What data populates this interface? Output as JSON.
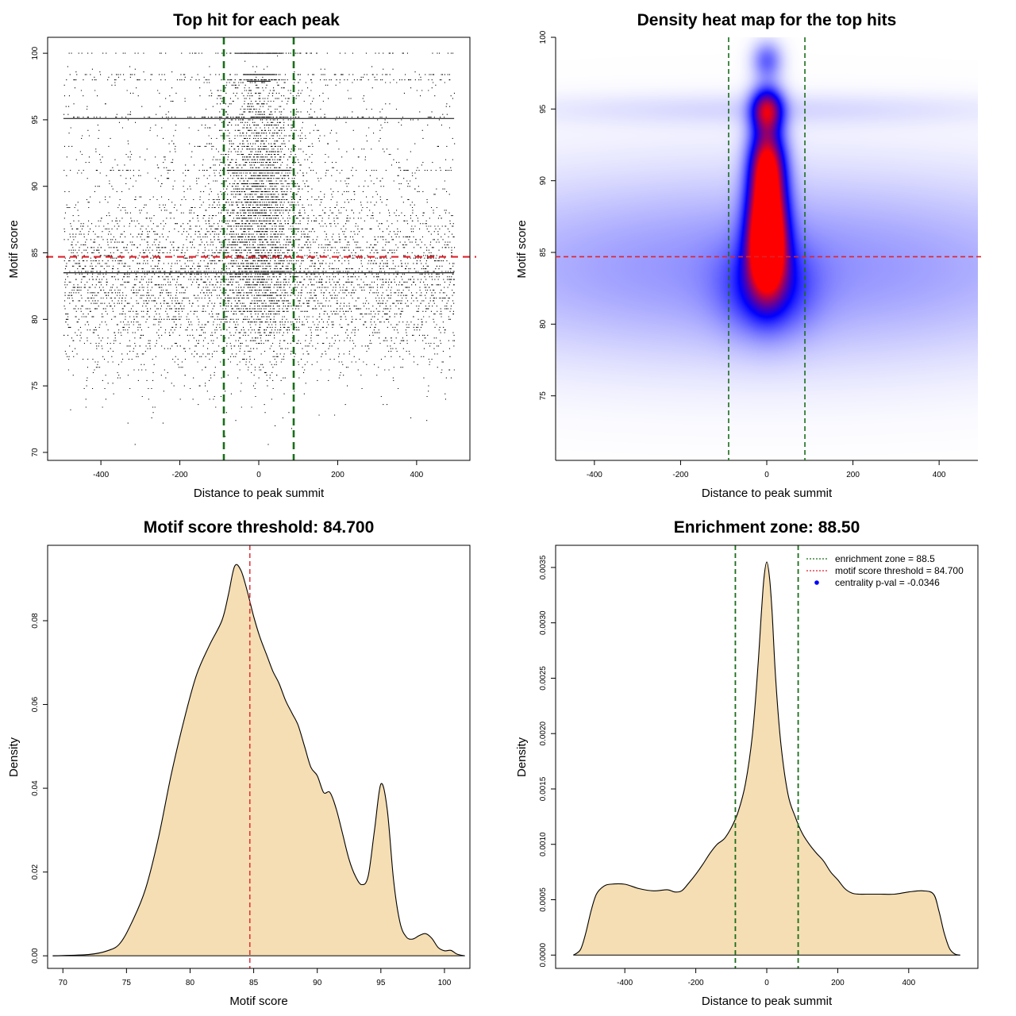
{
  "colors": {
    "zone_line": "#1a6e1a",
    "threshold_line": "#e0222a",
    "density_fill": "#f5deb3",
    "heat_low": "#0000ff",
    "heat_high": "#ff0000",
    "legend_dot": "#0000ff"
  },
  "chart_data": [
    {
      "id": "scatter",
      "type": "scatter",
      "title": "Top hit for each peak",
      "xlabel": "Distance to peak summit",
      "ylabel": "Motif score",
      "xlim": [
        -535,
        535
      ],
      "ylim": [
        69.4,
        101.2
      ],
      "xticks": [
        -400,
        -200,
        0,
        200,
        400
      ],
      "yticks": [
        70,
        75,
        80,
        85,
        90,
        95,
        100
      ],
      "vlines": [
        -88.5,
        88.5
      ],
      "hline": 84.7,
      "point_count": 9000,
      "bands": [
        100,
        98.4,
        97.9,
        95.1,
        91.2,
        83.5
      ],
      "x_range": [
        -495,
        495
      ]
    },
    {
      "id": "heatmap",
      "type": "heatmap",
      "title": "Density heat map for the top hits",
      "xlabel": "Distance to peak summit",
      "ylabel": "Motif score",
      "xlim": [
        -490,
        490
      ],
      "ylim": [
        70.5,
        100
      ],
      "xticks": [
        -400,
        -200,
        0,
        200,
        400
      ],
      "yticks": [
        75,
        80,
        85,
        90,
        95,
        100
      ],
      "vlines": [
        -88.5,
        88.5
      ],
      "hline": 84.7,
      "blobs": [
        {
          "x": 0,
          "y": 85.3,
          "wx": 30,
          "wy": 2.2,
          "w": 1.0
        },
        {
          "x": 0,
          "y": 88.5,
          "wx": 30,
          "wy": 2.6,
          "w": 0.9
        },
        {
          "x": 0,
          "y": 91.5,
          "wx": 28,
          "wy": 1.8,
          "w": 0.6
        },
        {
          "x": 0,
          "y": 95.0,
          "wx": 26,
          "wy": 1.1,
          "w": 0.75
        },
        {
          "x": 0,
          "y": 98.4,
          "wx": 24,
          "wy": 0.9,
          "w": 0.3
        },
        {
          "x": 0,
          "y": 82.5,
          "wx": 70,
          "wy": 2.2,
          "w": 0.35
        },
        {
          "x": 0,
          "y": 84.0,
          "wx": 600,
          "wy": 4.5,
          "w": 0.22
        },
        {
          "x": 0,
          "y": 95.0,
          "wx": 420,
          "wy": 0.8,
          "w": 0.07
        }
      ]
    },
    {
      "id": "score_density",
      "type": "area",
      "title": "Motif score threshold: 84.700",
      "xlabel": "Motif score",
      "ylabel": "Density",
      "xlim": [
        68.8,
        102
      ],
      "ylim": [
        -0.003,
        0.098
      ],
      "xticks": [
        70,
        75,
        80,
        85,
        90,
        95,
        100
      ],
      "yticks": [
        0.0,
        0.02,
        0.04,
        0.06,
        0.08
      ],
      "ytick_labels": [
        "0.00",
        "0.02",
        "0.04",
        "0.06",
        "0.08"
      ],
      "vline": 84.7,
      "x": [
        69.2,
        72,
        73.5,
        74.5,
        75.5,
        76.5,
        77.5,
        78.5,
        79.5,
        80.5,
        81.5,
        82.5,
        83,
        83.5,
        84,
        84.5,
        85,
        85.5,
        86,
        86.5,
        87,
        87.5,
        88,
        88.5,
        89,
        89.5,
        90,
        90.5,
        91,
        91.5,
        92,
        92.5,
        93,
        93.5,
        94,
        94.5,
        95,
        95.5,
        96,
        96.5,
        97,
        97.5,
        98,
        98.5,
        99,
        99.5,
        100,
        100.5,
        101,
        101.6
      ],
      "y": [
        0.0,
        0.0003,
        0.0012,
        0.003,
        0.0085,
        0.016,
        0.028,
        0.043,
        0.056,
        0.067,
        0.074,
        0.08,
        0.086,
        0.093,
        0.092,
        0.087,
        0.081,
        0.076,
        0.072,
        0.068,
        0.065,
        0.061,
        0.058,
        0.055,
        0.05,
        0.045,
        0.043,
        0.039,
        0.039,
        0.035,
        0.029,
        0.023,
        0.019,
        0.017,
        0.019,
        0.03,
        0.041,
        0.035,
        0.018,
        0.008,
        0.0045,
        0.004,
        0.0048,
        0.0053,
        0.0042,
        0.002,
        0.0012,
        0.0013,
        0.0004,
        0.0
      ]
    },
    {
      "id": "distance_density",
      "type": "area",
      "title": "Enrichment zone: 88.50",
      "xlabel": "Distance to peak summit",
      "ylabel": "Density",
      "xlim": [
        -595,
        595
      ],
      "ylim": [
        -0.00012,
        0.0037
      ],
      "xticks": [
        -400,
        -200,
        0,
        200,
        400
      ],
      "yticks": [
        0,
        0.0005,
        0.001,
        0.0015,
        0.002,
        0.0025,
        0.003,
        0.0035
      ],
      "ytick_labels": [
        "0.0000",
        "0.0005",
        "0.0010",
        "0.0015",
        "0.0020",
        "0.0025",
        "0.0030",
        "0.0035"
      ],
      "vlines": [
        -88.5,
        88.5
      ],
      "x": [
        -545,
        -525,
        -510,
        -495,
        -480,
        -460,
        -440,
        -400,
        -360,
        -320,
        -280,
        -260,
        -240,
        -220,
        -200,
        -180,
        -160,
        -140,
        -120,
        -100,
        -80,
        -60,
        -40,
        -25,
        -15,
        -8,
        0,
        8,
        15,
        25,
        40,
        60,
        80,
        100,
        120,
        140,
        160,
        180,
        200,
        220,
        240,
        260,
        280,
        320,
        360,
        400,
        440,
        470,
        485,
        500,
        515,
        530,
        545
      ],
      "y": [
        0,
        5e-05,
        0.0002,
        0.0004,
        0.00055,
        0.00062,
        0.00064,
        0.00064,
        0.0006,
        0.00058,
        0.00059,
        0.00057,
        0.00058,
        0.00065,
        0.00073,
        0.00082,
        0.00092,
        0.001,
        0.00105,
        0.00115,
        0.0013,
        0.00155,
        0.002,
        0.0026,
        0.0031,
        0.0034,
        0.00355,
        0.0034,
        0.0031,
        0.0025,
        0.0019,
        0.00145,
        0.00125,
        0.0011,
        0.001,
        0.00092,
        0.00085,
        0.00075,
        0.00068,
        0.0006,
        0.00056,
        0.00055,
        0.00055,
        0.00055,
        0.00055,
        0.00057,
        0.00058,
        0.00055,
        0.0004,
        0.0002,
        6e-05,
        1e-05,
        0
      ],
      "legend": [
        {
          "kind": "line",
          "color_key": "zone_line",
          "label": "enrichment zone = 88.5"
        },
        {
          "kind": "line",
          "color_key": "threshold_line",
          "label": "motif score threshold = 84.700"
        },
        {
          "kind": "dot",
          "color_key": "legend_dot",
          "label": "centrality p-val = -0.0346"
        }
      ]
    }
  ]
}
